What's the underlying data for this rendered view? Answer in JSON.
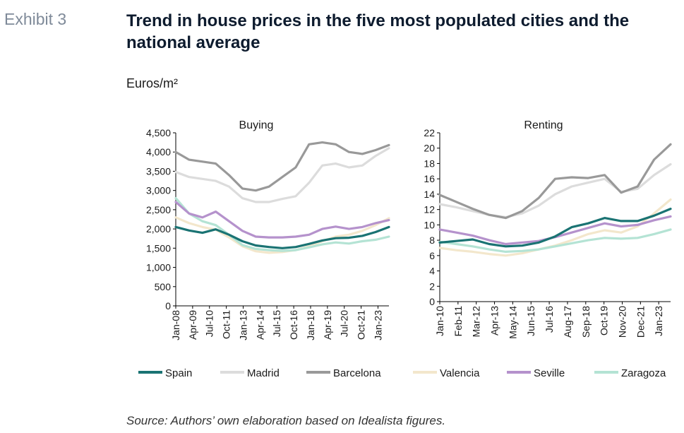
{
  "header": {
    "exhibit": "Exhibit 3",
    "title": "Trend in house prices in the five most populated cities and the national average",
    "units": "Euros/m²"
  },
  "footer": {
    "source": "Source: Authors’ own elaboration based on Idealista figures."
  },
  "legend": [
    {
      "name": "Spain",
      "color": "#1a7373"
    },
    {
      "name": "Madrid",
      "color": "#dcdcdc"
    },
    {
      "name": "Barcelona",
      "color": "#999999"
    },
    {
      "name": "Valencia",
      "color": "#f3e7cc"
    },
    {
      "name": "Seville",
      "color": "#b592cc"
    },
    {
      "name": "Zaragoza",
      "color": "#b4e3d4"
    }
  ],
  "chart_data": [
    {
      "type": "line",
      "title": "Buying",
      "ylim": [
        0,
        4500
      ],
      "yticks": [
        "0",
        "500",
        "1,000",
        "1,500",
        "2,000",
        "2,500",
        "3,000",
        "3,500",
        "4,000",
        "4,500"
      ],
      "xticks": [
        "Jan-08",
        "Apr-09",
        "Jul-10",
        "Oct-11",
        "Jan-13",
        "Apr-14",
        "Jul-15",
        "Oct-16",
        "Jan-18",
        "Apr-19",
        "Jul-20",
        "Oct-21",
        "Jan-23"
      ],
      "x": [
        "Jan-08",
        "Jan-09",
        "Jan-10",
        "Jan-11",
        "Jan-12",
        "Jan-13",
        "Jan-14",
        "Jan-15",
        "Jan-16",
        "Jan-17",
        "Jan-18",
        "Jan-19",
        "Jan-20",
        "Jan-21",
        "Jan-22",
        "Jan-23",
        "Jan-24"
      ],
      "grid": false,
      "series": [
        {
          "name": "Spain",
          "values": [
            2050,
            1960,
            1900,
            1990,
            1850,
            1680,
            1570,
            1530,
            1500,
            1530,
            1610,
            1700,
            1760,
            1770,
            1820,
            1920,
            2050
          ]
        },
        {
          "name": "Madrid",
          "values": [
            3480,
            3350,
            3300,
            3250,
            3100,
            2800,
            2700,
            2700,
            2780,
            2850,
            3200,
            3650,
            3700,
            3600,
            3650,
            3900,
            4100
          ]
        },
        {
          "name": "Barcelona",
          "values": [
            4000,
            3800,
            3750,
            3700,
            3400,
            3050,
            3000,
            3100,
            3350,
            3600,
            4200,
            4250,
            4200,
            4000,
            3950,
            4050,
            4180
          ]
        },
        {
          "name": "Valencia",
          "values": [
            2300,
            2150,
            2050,
            1980,
            1780,
            1550,
            1420,
            1380,
            1400,
            1450,
            1550,
            1680,
            1800,
            1850,
            1950,
            2100,
            2280
          ]
        },
        {
          "name": "Seville",
          "values": [
            2700,
            2400,
            2300,
            2450,
            2200,
            1950,
            1800,
            1780,
            1780,
            1800,
            1850,
            2000,
            2060,
            2000,
            2050,
            2150,
            2230
          ]
        },
        {
          "name": "Zaragoza",
          "values": [
            2800,
            2400,
            2200,
            2100,
            1850,
            1580,
            1480,
            1450,
            1430,
            1450,
            1520,
            1600,
            1650,
            1620,
            1680,
            1720,
            1800
          ]
        }
      ]
    },
    {
      "type": "line",
      "title": "Renting",
      "ylim": [
        0,
        22
      ],
      "yticks": [
        "0",
        "2",
        "4",
        "6",
        "8",
        "10",
        "12",
        "14",
        "16",
        "18",
        "20",
        "22"
      ],
      "xticks": [
        "Jan-10",
        "Feb-11",
        "Mar-12",
        "Apr-13",
        "May-14",
        "Jun-15",
        "Jul-16",
        "Aug-17",
        "Sep-18",
        "Oct-19",
        "Nov-20",
        "Dec-21",
        "Jan-23"
      ],
      "x": [
        "Jan-10",
        "Jan-11",
        "Jan-12",
        "Jan-13",
        "Jan-14",
        "Jan-15",
        "Jan-16",
        "Jan-17",
        "Jan-18",
        "Jan-19",
        "Jan-20",
        "Jan-21",
        "Jan-22",
        "Jan-23",
        "Jan-24"
      ],
      "grid": false,
      "series": [
        {
          "name": "Spain",
          "values": [
            7.7,
            7.9,
            8.1,
            7.5,
            7.2,
            7.3,
            7.7,
            8.5,
            9.7,
            10.2,
            10.9,
            10.5,
            10.5,
            11.2,
            12.1
          ]
        },
        {
          "name": "Madrid",
          "values": [
            12.7,
            12.3,
            11.8,
            11.3,
            11.0,
            11.5,
            12.5,
            14.0,
            15.0,
            15.5,
            16.0,
            14.3,
            14.7,
            16.5,
            17.9
          ]
        },
        {
          "name": "Barcelona",
          "values": [
            13.9,
            13.0,
            12.1,
            11.3,
            10.9,
            11.8,
            13.5,
            16.0,
            16.2,
            16.1,
            16.5,
            14.2,
            15.0,
            18.5,
            20.5
          ]
        },
        {
          "name": "Valencia",
          "values": [
            7.0,
            6.7,
            6.5,
            6.2,
            6.0,
            6.3,
            6.8,
            7.3,
            8.0,
            8.8,
            9.3,
            9.0,
            9.8,
            11.5,
            13.3
          ]
        },
        {
          "name": "Seville",
          "values": [
            9.4,
            9.0,
            8.6,
            8.0,
            7.5,
            7.7,
            7.9,
            8.4,
            9.0,
            9.6,
            10.2,
            9.8,
            10.0,
            10.6,
            11.1
          ]
        },
        {
          "name": "Zaragoza",
          "values": [
            7.8,
            7.5,
            7.2,
            6.8,
            6.5,
            6.6,
            6.8,
            7.2,
            7.6,
            8.0,
            8.3,
            8.2,
            8.3,
            8.8,
            9.4
          ]
        }
      ]
    }
  ]
}
